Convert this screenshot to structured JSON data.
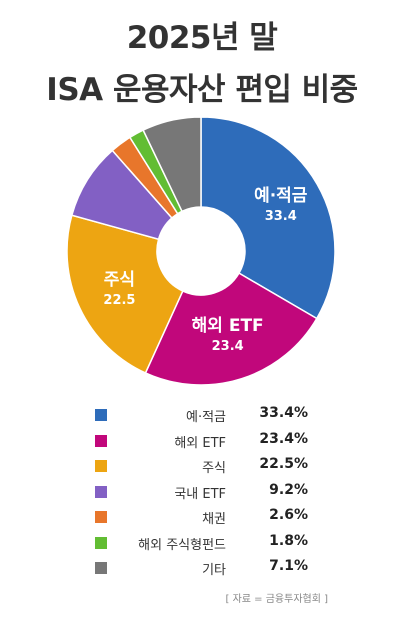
{
  "title_line1": "2025년 말",
  "title_line2": "ISA 운용자산 편입 비중",
  "chart_data": {
    "type": "pie",
    "donut": true,
    "categories": [
      "예·적금",
      "해외 ETF",
      "주식",
      "국내 ETF",
      "채권",
      "해외 주식형펀드",
      "기타"
    ],
    "values": [
      33.4,
      23.4,
      22.5,
      9.2,
      2.6,
      1.8,
      7.1
    ],
    "colors": [
      "#2e6cba",
      "#c1077b",
      "#eda512",
      "#8260c4",
      "#e8762b",
      "#62bd33",
      "#777777"
    ],
    "slice_labels": [
      {
        "name": "예·적금",
        "value": "33.4"
      },
      {
        "name": "해외 ETF",
        "value": "23.4"
      },
      {
        "name": "주식",
        "value": "22.5"
      }
    ],
    "legend_placement": "bottom",
    "legend": [
      {
        "name": "예·적금",
        "pct": "33.4%"
      },
      {
        "name": "해외 ETF",
        "pct": "23.4%"
      },
      {
        "name": "주식",
        "pct": "22.5%"
      },
      {
        "name": "국내 ETF",
        "pct": "9.2%"
      },
      {
        "name": "채권",
        "pct": "2.6%"
      },
      {
        "name": "해외 주식형펀드",
        "pct": "1.8%"
      },
      {
        "name": "기타",
        "pct": "7.1%"
      }
    ]
  },
  "source": "[ 자료 = 금융투자협회 ]"
}
